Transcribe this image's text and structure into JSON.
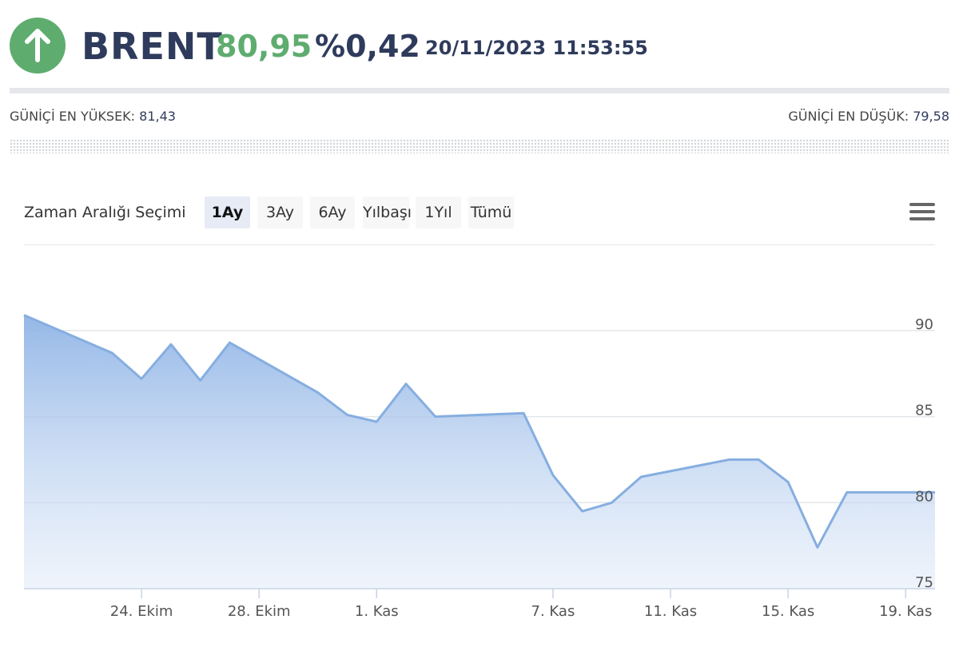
{
  "header": {
    "symbol": "BRENT",
    "price": "80,95",
    "change": "%0,42",
    "datetime": "20/11/2023 11:53:55",
    "direction_icon": "arrow-up-icon",
    "up_color": "#5fac6f"
  },
  "stats": {
    "high_label": "GÜNİÇİ EN YÜKSEK:",
    "high_value": "81,43",
    "low_label": "GÜNİÇİ EN DÜŞÜK:",
    "low_value": "79,58"
  },
  "range": {
    "label": "Zaman Aralığı Seçimi",
    "buttons": [
      "1Ay",
      "3Ay",
      "6Ay",
      "Yılbaşı",
      "1Yıl",
      "Tümü"
    ],
    "active": "1Ay",
    "menu_icon": "hamburger-menu-icon"
  },
  "chart_data": {
    "type": "area",
    "title": "",
    "xlabel": "",
    "ylabel": "",
    "x": [
      "2023-10-20",
      "2023-10-23",
      "2023-10-24",
      "2023-10-25",
      "2023-10-26",
      "2023-10-27",
      "2023-10-30",
      "2023-10-31",
      "2023-11-01",
      "2023-11-02",
      "2023-11-03",
      "2023-11-06",
      "2023-11-07",
      "2023-11-08",
      "2023-11-09",
      "2023-11-10",
      "2023-11-13",
      "2023-11-14",
      "2023-11-15",
      "2023-11-16",
      "2023-11-17",
      "2023-11-20"
    ],
    "series": [
      {
        "values": [
          90.9,
          88.7,
          87.2,
          89.2,
          87.1,
          89.3,
          86.4,
          85.1,
          84.7,
          86.9,
          85.0,
          85.2,
          81.6,
          79.5,
          80.0,
          81.5,
          82.5,
          82.5,
          81.2,
          77.4,
          80.6,
          80.6
        ]
      }
    ],
    "ylim": [
      75,
      92.5
    ],
    "yticks": [
      "75",
      "80",
      "85",
      "90"
    ],
    "ytick_values": [
      75,
      80,
      85,
      90
    ],
    "xticks": [
      "24. Ekim",
      "28. Ekim",
      "1. Kas",
      "7. Kas",
      "11. Kas",
      "15. Kas",
      "19. Kas"
    ],
    "xtick_dates": [
      "2023-10-24",
      "2023-10-28",
      "2023-11-01",
      "2023-11-07",
      "2023-11-11",
      "2023-11-15",
      "2023-11-19"
    ],
    "grid": true,
    "legend": "none",
    "line_color": "#86aee0",
    "fill_color": "#b4cdef"
  }
}
